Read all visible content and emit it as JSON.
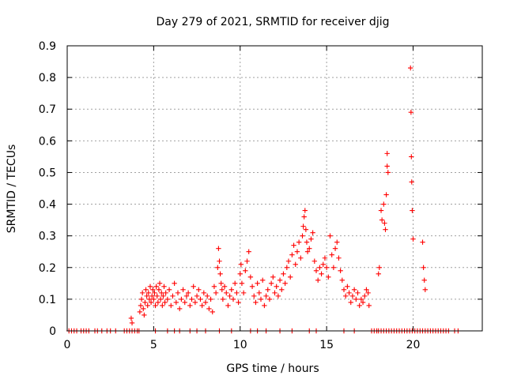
{
  "chart_data": {
    "type": "scatter",
    "title": "Day 279 of 2021, SRMTID for receiver djig",
    "xlabel": "GPS time / hours",
    "ylabel": "SRMTID / TECUs",
    "xlim": [
      0,
      24
    ],
    "ylim": [
      0,
      0.9
    ],
    "x_ticks": [
      0,
      5,
      10,
      15,
      20
    ],
    "x_tick_labels": [
      "0",
      "5",
      "10",
      "15",
      "20"
    ],
    "y_ticks": [
      0,
      0.1,
      0.2,
      0.3,
      0.4,
      0.5,
      0.6,
      0.7,
      0.8,
      0.9
    ],
    "y_tick_labels": [
      "0",
      "0.1",
      "0.2",
      "0.3",
      "0.4",
      "0.5",
      "0.6",
      "0.7",
      "0.8",
      "0.9"
    ],
    "grid": true,
    "marker": "+",
    "color": "#ff0000",
    "series": [
      {
        "name": "SRMTID",
        "points": [
          [
            0.1,
            0
          ],
          [
            0.25,
            0
          ],
          [
            0.4,
            0
          ],
          [
            0.55,
            0
          ],
          [
            0.8,
            0
          ],
          [
            0.95,
            0
          ],
          [
            1.1,
            0
          ],
          [
            1.25,
            0
          ],
          [
            1.6,
            0
          ],
          [
            1.75,
            0
          ],
          [
            2.0,
            0
          ],
          [
            2.3,
            0
          ],
          [
            2.5,
            0
          ],
          [
            2.8,
            0
          ],
          [
            3.3,
            0
          ],
          [
            3.45,
            0
          ],
          [
            3.6,
            0
          ],
          [
            3.75,
            0
          ],
          [
            3.9,
            0
          ],
          [
            4.05,
            0
          ],
          [
            4.15,
            0
          ],
          [
            3.7,
            0.04
          ],
          [
            3.75,
            0.025
          ],
          [
            4.2,
            0.06
          ],
          [
            4.25,
            0.08
          ],
          [
            4.3,
            0.1
          ],
          [
            4.35,
            0.12
          ],
          [
            4.4,
            0.07
          ],
          [
            4.45,
            0.05
          ],
          [
            4.5,
            0.09
          ],
          [
            4.55,
            0.13
          ],
          [
            4.6,
            0.11
          ],
          [
            4.65,
            0.08
          ],
          [
            4.7,
            0.12
          ],
          [
            4.75,
            0.1
          ],
          [
            4.8,
            0.14
          ],
          [
            4.85,
            0.09
          ],
          [
            4.9,
            0.11
          ],
          [
            4.95,
            0.13
          ],
          [
            5.0,
            0.1
          ],
          [
            5.05,
            0.12
          ],
          [
            5.1,
            0.08
          ],
          [
            5.15,
            0.14
          ],
          [
            5.2,
            0.11
          ],
          [
            5.25,
            0.09
          ],
          [
            5.3,
            0.13
          ],
          [
            5.35,
            0.15
          ],
          [
            5.4,
            0.1
          ],
          [
            5.45,
            0.12
          ],
          [
            5.5,
            0.08
          ],
          [
            5.55,
            0.11
          ],
          [
            5.6,
            0.14
          ],
          [
            5.65,
            0.09
          ],
          [
            5.7,
            0.12
          ],
          [
            5.8,
            0.1
          ],
          [
            5.9,
            0.13
          ],
          [
            6.0,
            0.08
          ],
          [
            6.1,
            0.11
          ],
          [
            6.2,
            0.15
          ],
          [
            6.3,
            0.09
          ],
          [
            6.4,
            0.12
          ],
          [
            6.5,
            0.07
          ],
          [
            6.6,
            0.1
          ],
          [
            6.7,
            0.13
          ],
          [
            6.8,
            0.09
          ],
          [
            6.9,
            0.11
          ],
          [
            7.0,
            0.12
          ],
          [
            7.1,
            0.08
          ],
          [
            7.2,
            0.1
          ],
          [
            7.3,
            0.14
          ],
          [
            7.4,
            0.09
          ],
          [
            7.5,
            0.11
          ],
          [
            7.6,
            0.13
          ],
          [
            7.7,
            0.1
          ],
          [
            7.8,
            0.08
          ],
          [
            7.9,
            0.12
          ],
          [
            8.0,
            0.09
          ],
          [
            8.1,
            0.11
          ],
          [
            8.2,
            0.07
          ],
          [
            8.3,
            0.1
          ],
          [
            8.4,
            0.06
          ],
          [
            8.5,
            0.14
          ],
          [
            8.6,
            0.12
          ],
          [
            8.7,
            0.2
          ],
          [
            8.75,
            0.26
          ],
          [
            8.8,
            0.22
          ],
          [
            8.85,
            0.18
          ],
          [
            8.9,
            0.15
          ],
          [
            8.95,
            0.13
          ],
          [
            9.0,
            0.1
          ],
          [
            9.1,
            0.14
          ],
          [
            9.2,
            0.12
          ],
          [
            9.3,
            0.08
          ],
          [
            9.4,
            0.11
          ],
          [
            9.5,
            0.13
          ],
          [
            9.6,
            0.1
          ],
          [
            9.7,
            0.15
          ],
          [
            9.8,
            0.12
          ],
          [
            9.9,
            0.09
          ],
          [
            10.0,
            0.18
          ],
          [
            10.05,
            0.21
          ],
          [
            10.1,
            0.15
          ],
          [
            10.2,
            0.12
          ],
          [
            10.3,
            0.19
          ],
          [
            10.4,
            0.22
          ],
          [
            10.5,
            0.25
          ],
          [
            10.6,
            0.17
          ],
          [
            10.7,
            0.14
          ],
          [
            10.8,
            0.11
          ],
          [
            10.9,
            0.09
          ],
          [
            11.0,
            0.15
          ],
          [
            11.1,
            0.12
          ],
          [
            11.2,
            0.1
          ],
          [
            11.3,
            0.16
          ],
          [
            11.4,
            0.08
          ],
          [
            11.5,
            0.11
          ],
          [
            11.6,
            0.13
          ],
          [
            11.7,
            0.1
          ],
          [
            11.8,
            0.15
          ],
          [
            11.9,
            0.17
          ],
          [
            12.0,
            0.12
          ],
          [
            12.1,
            0.14
          ],
          [
            12.2,
            0.11
          ],
          [
            12.3,
            0.16
          ],
          [
            12.4,
            0.13
          ],
          [
            12.5,
            0.18
          ],
          [
            12.6,
            0.15
          ],
          [
            12.7,
            0.2
          ],
          [
            12.8,
            0.22
          ],
          [
            12.9,
            0.17
          ],
          [
            13.0,
            0.24
          ],
          [
            13.1,
            0.27
          ],
          [
            13.2,
            0.21
          ],
          [
            13.3,
            0.25
          ],
          [
            13.4,
            0.28
          ],
          [
            13.5,
            0.23
          ],
          [
            13.6,
            0.3
          ],
          [
            13.65,
            0.33
          ],
          [
            13.7,
            0.36
          ],
          [
            13.75,
            0.38
          ],
          [
            13.8,
            0.32
          ],
          [
            13.85,
            0.28
          ],
          [
            13.9,
            0.25
          ],
          [
            14.0,
            0.26
          ],
          [
            14.1,
            0.29
          ],
          [
            14.2,
            0.31
          ],
          [
            14.3,
            0.22
          ],
          [
            14.4,
            0.19
          ],
          [
            14.5,
            0.16
          ],
          [
            14.6,
            0.2
          ],
          [
            14.7,
            0.18
          ],
          [
            14.8,
            0.21
          ],
          [
            14.9,
            0.23
          ],
          [
            15.0,
            0.2
          ],
          [
            15.1,
            0.17
          ],
          [
            15.2,
            0.3
          ],
          [
            15.3,
            0.24
          ],
          [
            15.4,
            0.2
          ],
          [
            15.5,
            0.26
          ],
          [
            15.6,
            0.28
          ],
          [
            15.7,
            0.23
          ],
          [
            15.8,
            0.19
          ],
          [
            15.9,
            0.16
          ],
          [
            16.0,
            0.13
          ],
          [
            16.1,
            0.11
          ],
          [
            16.2,
            0.14
          ],
          [
            16.3,
            0.12
          ],
          [
            16.4,
            0.09
          ],
          [
            16.5,
            0.11
          ],
          [
            16.6,
            0.13
          ],
          [
            16.7,
            0.1
          ],
          [
            16.8,
            0.12
          ],
          [
            16.9,
            0.08
          ],
          [
            17.0,
            0.1
          ],
          [
            17.1,
            0.09
          ],
          [
            17.2,
            0.11
          ],
          [
            17.3,
            0.13
          ],
          [
            17.4,
            0.12
          ],
          [
            17.45,
            0.08
          ],
          [
            18.0,
            0.18
          ],
          [
            18.05,
            0.2
          ],
          [
            18.15,
            0.38
          ],
          [
            18.2,
            0.35
          ],
          [
            18.3,
            0.4
          ],
          [
            18.35,
            0.34
          ],
          [
            18.4,
            0.32
          ],
          [
            18.45,
            0.43
          ],
          [
            18.5,
            0.56
          ],
          [
            18.5,
            0.52
          ],
          [
            18.55,
            0.5
          ],
          [
            19.85,
            0.83
          ],
          [
            19.88,
            0.69
          ],
          [
            19.9,
            0.55
          ],
          [
            19.92,
            0.47
          ],
          [
            19.95,
            0.38
          ],
          [
            20.0,
            0.29
          ],
          [
            20.55,
            0.28
          ],
          [
            20.6,
            0.2
          ],
          [
            20.65,
            0.16
          ],
          [
            20.7,
            0.13
          ],
          [
            17.6,
            0
          ],
          [
            17.75,
            0
          ],
          [
            17.9,
            0
          ],
          [
            18.0,
            0
          ],
          [
            18.15,
            0
          ],
          [
            18.3,
            0
          ],
          [
            18.45,
            0
          ],
          [
            18.6,
            0
          ],
          [
            18.75,
            0
          ],
          [
            18.9,
            0
          ],
          [
            19.05,
            0
          ],
          [
            19.2,
            0
          ],
          [
            19.35,
            0
          ],
          [
            19.5,
            0
          ],
          [
            19.65,
            0
          ],
          [
            19.8,
            0
          ],
          [
            19.95,
            0
          ],
          [
            20.1,
            0
          ],
          [
            20.25,
            0
          ],
          [
            20.4,
            0
          ],
          [
            20.55,
            0
          ],
          [
            20.7,
            0
          ],
          [
            20.85,
            0
          ],
          [
            21.0,
            0
          ],
          [
            21.15,
            0
          ],
          [
            21.3,
            0
          ],
          [
            21.45,
            0
          ],
          [
            21.6,
            0
          ],
          [
            21.75,
            0
          ],
          [
            21.9,
            0
          ],
          [
            22.05,
            0
          ],
          [
            22.4,
            0
          ],
          [
            22.6,
            0
          ],
          [
            5.1,
            0
          ],
          [
            5.8,
            0
          ],
          [
            6.2,
            0
          ],
          [
            6.5,
            0
          ],
          [
            7.1,
            0
          ],
          [
            7.5,
            0
          ],
          [
            8.0,
            0
          ],
          [
            8.8,
            0
          ],
          [
            9.5,
            0
          ],
          [
            10.6,
            0
          ],
          [
            11.0,
            0
          ],
          [
            11.5,
            0
          ],
          [
            12.3,
            0
          ],
          [
            13.0,
            0
          ],
          [
            14.0,
            0
          ],
          [
            14.4,
            0
          ],
          [
            16.0,
            0
          ],
          [
            16.6,
            0
          ]
        ]
      }
    ]
  }
}
